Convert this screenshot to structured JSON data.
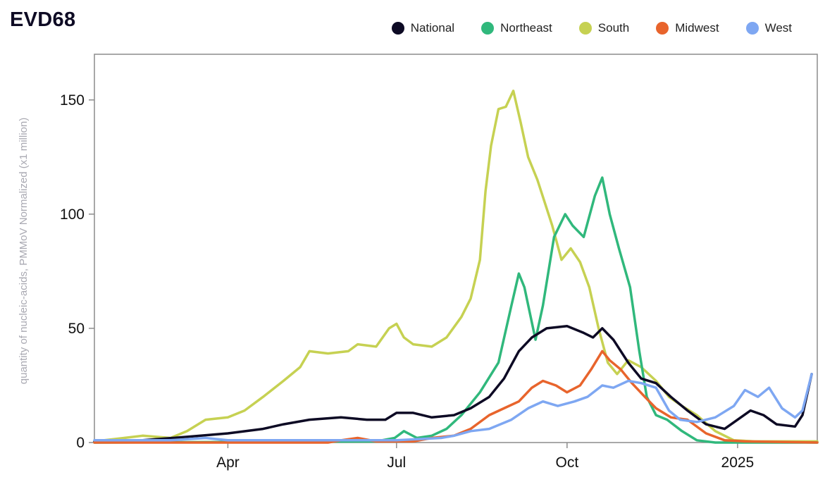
{
  "chart_data": {
    "type": "line",
    "title": "EVD68",
    "ylabel": "quantity of nucleic-acids, PMMoV Normalized (x1 million)",
    "xlabel": "",
    "x_range": [
      "2024-01-20",
      "2025-02-13"
    ],
    "ylim": [
      0,
      170
    ],
    "y_ticks": [
      0,
      50,
      100,
      150
    ],
    "x_ticks": [
      {
        "label": "Apr",
        "date": "2024-04-01"
      },
      {
        "label": "Jul",
        "date": "2024-07-01"
      },
      {
        "label": "Oct",
        "date": "2024-10-01"
      },
      {
        "label": "2025",
        "date": "2025-01-01"
      }
    ],
    "grid": false,
    "legend_position": "top-right",
    "series": [
      {
        "name": "South",
        "color": "#c6d152",
        "points": [
          [
            "2024-01-20",
            0.5
          ],
          [
            "2024-02-05",
            2
          ],
          [
            "2024-02-15",
            3
          ],
          [
            "2024-03-01",
            2
          ],
          [
            "2024-03-10",
            5
          ],
          [
            "2024-03-20",
            10
          ],
          [
            "2024-04-01",
            11
          ],
          [
            "2024-04-10",
            14
          ],
          [
            "2024-04-20",
            20
          ],
          [
            "2024-05-01",
            27
          ],
          [
            "2024-05-10",
            33
          ],
          [
            "2024-05-15",
            40
          ],
          [
            "2024-05-25",
            39
          ],
          [
            "2024-06-05",
            40
          ],
          [
            "2024-06-10",
            43
          ],
          [
            "2024-06-20",
            42
          ],
          [
            "2024-06-27",
            50
          ],
          [
            "2024-07-01",
            52
          ],
          [
            "2024-07-05",
            46
          ],
          [
            "2024-07-10",
            43
          ],
          [
            "2024-07-20",
            42
          ],
          [
            "2024-07-28",
            46
          ],
          [
            "2024-08-05",
            55
          ],
          [
            "2024-08-10",
            63
          ],
          [
            "2024-08-15",
            80
          ],
          [
            "2024-08-18",
            110
          ],
          [
            "2024-08-21",
            130
          ],
          [
            "2024-08-25",
            146
          ],
          [
            "2024-08-29",
            147
          ],
          [
            "2024-09-02",
            154
          ],
          [
            "2024-09-06",
            140
          ],
          [
            "2024-09-10",
            125
          ],
          [
            "2024-09-15",
            115
          ],
          [
            "2024-09-19",
            105
          ],
          [
            "2024-09-23",
            95
          ],
          [
            "2024-09-28",
            80
          ],
          [
            "2024-10-03",
            85
          ],
          [
            "2024-10-08",
            79
          ],
          [
            "2024-10-13",
            68
          ],
          [
            "2024-10-18",
            50
          ],
          [
            "2024-10-23",
            35
          ],
          [
            "2024-10-28",
            30
          ],
          [
            "2024-11-03",
            36
          ],
          [
            "2024-11-10",
            33
          ],
          [
            "2024-11-18",
            27
          ],
          [
            "2024-11-25",
            20
          ],
          [
            "2024-12-02",
            16
          ],
          [
            "2024-12-10",
            12
          ],
          [
            "2024-12-20",
            5
          ],
          [
            "2024-12-30",
            1
          ],
          [
            "2025-01-10",
            0.5
          ],
          [
            "2025-02-13",
            0.5
          ]
        ]
      },
      {
        "name": "Northeast",
        "color": "#30b87c",
        "points": [
          [
            "2024-01-20",
            0
          ],
          [
            "2024-06-20",
            0.5
          ],
          [
            "2024-06-30",
            2
          ],
          [
            "2024-07-05",
            5
          ],
          [
            "2024-07-12",
            2
          ],
          [
            "2024-07-20",
            3
          ],
          [
            "2024-07-28",
            6
          ],
          [
            "2024-08-05",
            12
          ],
          [
            "2024-08-15",
            22
          ],
          [
            "2024-08-25",
            35
          ],
          [
            "2024-09-01",
            60
          ],
          [
            "2024-09-05",
            74
          ],
          [
            "2024-09-08",
            68
          ],
          [
            "2024-09-14",
            45
          ],
          [
            "2024-09-18",
            60
          ],
          [
            "2024-09-24",
            90
          ],
          [
            "2024-09-30",
            100
          ],
          [
            "2024-10-04",
            95
          ],
          [
            "2024-10-10",
            90
          ],
          [
            "2024-10-16",
            108
          ],
          [
            "2024-10-20",
            116
          ],
          [
            "2024-10-24",
            100
          ],
          [
            "2024-10-29",
            85
          ],
          [
            "2024-11-04",
            68
          ],
          [
            "2024-11-09",
            40
          ],
          [
            "2024-11-13",
            20
          ],
          [
            "2024-11-18",
            12
          ],
          [
            "2024-11-24",
            10
          ],
          [
            "2024-12-02",
            5
          ],
          [
            "2024-12-10",
            1
          ],
          [
            "2024-12-20",
            0
          ],
          [
            "2025-02-13",
            0
          ]
        ]
      },
      {
        "name": "National",
        "color": "#0d0a24",
        "points": [
          [
            "2024-01-20",
            0.5
          ],
          [
            "2024-02-15",
            1
          ],
          [
            "2024-03-10",
            2.5
          ],
          [
            "2024-04-01",
            4
          ],
          [
            "2024-04-20",
            6
          ],
          [
            "2024-05-01",
            8
          ],
          [
            "2024-05-15",
            10
          ],
          [
            "2024-06-01",
            11
          ],
          [
            "2024-06-15",
            10
          ],
          [
            "2024-06-25",
            10
          ],
          [
            "2024-07-01",
            13
          ],
          [
            "2024-07-10",
            13
          ],
          [
            "2024-07-20",
            11
          ],
          [
            "2024-08-01",
            12
          ],
          [
            "2024-08-10",
            15
          ],
          [
            "2024-08-20",
            20
          ],
          [
            "2024-08-28",
            28
          ],
          [
            "2024-09-05",
            40
          ],
          [
            "2024-09-12",
            46
          ],
          [
            "2024-09-20",
            50
          ],
          [
            "2024-10-01",
            51
          ],
          [
            "2024-10-10",
            48
          ],
          [
            "2024-10-15",
            46
          ],
          [
            "2024-10-20",
            50
          ],
          [
            "2024-10-26",
            45
          ],
          [
            "2024-11-03",
            35
          ],
          [
            "2024-11-10",
            28
          ],
          [
            "2024-11-18",
            26
          ],
          [
            "2024-11-26",
            20
          ],
          [
            "2024-12-05",
            14
          ],
          [
            "2024-12-15",
            8
          ],
          [
            "2024-12-25",
            6
          ],
          [
            "2025-01-01",
            10
          ],
          [
            "2025-01-08",
            14
          ],
          [
            "2025-01-15",
            12
          ],
          [
            "2025-01-22",
            8
          ],
          [
            "2025-02-01",
            7
          ],
          [
            "2025-02-05",
            12
          ],
          [
            "2025-02-10",
            30
          ]
        ]
      },
      {
        "name": "Midwest",
        "color": "#e8642c",
        "points": [
          [
            "2024-01-20",
            0
          ],
          [
            "2024-05-25",
            0
          ],
          [
            "2024-06-01",
            1
          ],
          [
            "2024-06-10",
            2
          ],
          [
            "2024-06-20",
            0.5
          ],
          [
            "2024-07-10",
            0.5
          ],
          [
            "2024-07-20",
            2
          ],
          [
            "2024-08-01",
            3
          ],
          [
            "2024-08-10",
            6
          ],
          [
            "2024-08-20",
            12
          ],
          [
            "2024-08-28",
            15
          ],
          [
            "2024-09-05",
            18
          ],
          [
            "2024-09-12",
            24
          ],
          [
            "2024-09-18",
            27
          ],
          [
            "2024-09-25",
            25
          ],
          [
            "2024-10-01",
            22
          ],
          [
            "2024-10-08",
            25
          ],
          [
            "2024-10-14",
            32
          ],
          [
            "2024-10-20",
            40
          ],
          [
            "2024-10-24",
            36
          ],
          [
            "2024-10-30",
            32
          ],
          [
            "2024-11-05",
            26
          ],
          [
            "2024-11-12",
            20
          ],
          [
            "2024-11-18",
            15
          ],
          [
            "2024-11-26",
            11
          ],
          [
            "2024-12-05",
            10
          ],
          [
            "2024-12-15",
            4
          ],
          [
            "2024-12-25",
            1
          ],
          [
            "2025-01-05",
            0.5
          ],
          [
            "2025-02-13",
            0
          ]
        ]
      },
      {
        "name": "West",
        "color": "#7ea7f2",
        "points": [
          [
            "2024-01-20",
            1
          ],
          [
            "2024-03-01",
            1
          ],
          [
            "2024-03-20",
            2
          ],
          [
            "2024-04-01",
            1
          ],
          [
            "2024-06-01",
            1
          ],
          [
            "2024-07-01",
            1
          ],
          [
            "2024-07-25",
            2
          ],
          [
            "2024-08-01",
            3
          ],
          [
            "2024-08-10",
            5
          ],
          [
            "2024-08-20",
            6
          ],
          [
            "2024-09-01",
            10
          ],
          [
            "2024-09-10",
            15
          ],
          [
            "2024-09-18",
            18
          ],
          [
            "2024-09-26",
            16
          ],
          [
            "2024-10-05",
            18
          ],
          [
            "2024-10-12",
            20
          ],
          [
            "2024-10-20",
            25
          ],
          [
            "2024-10-26",
            24
          ],
          [
            "2024-11-03",
            27
          ],
          [
            "2024-11-10",
            26
          ],
          [
            "2024-11-18",
            24
          ],
          [
            "2024-11-25",
            14
          ],
          [
            "2024-12-01",
            10
          ],
          [
            "2024-12-10",
            9
          ],
          [
            "2024-12-20",
            11
          ],
          [
            "2024-12-30",
            16
          ],
          [
            "2025-01-05",
            23
          ],
          [
            "2025-01-12",
            20
          ],
          [
            "2025-01-18",
            24
          ],
          [
            "2025-01-25",
            15
          ],
          [
            "2025-02-01",
            11
          ],
          [
            "2025-02-05",
            14
          ],
          [
            "2025-02-10",
            30
          ]
        ]
      }
    ]
  }
}
